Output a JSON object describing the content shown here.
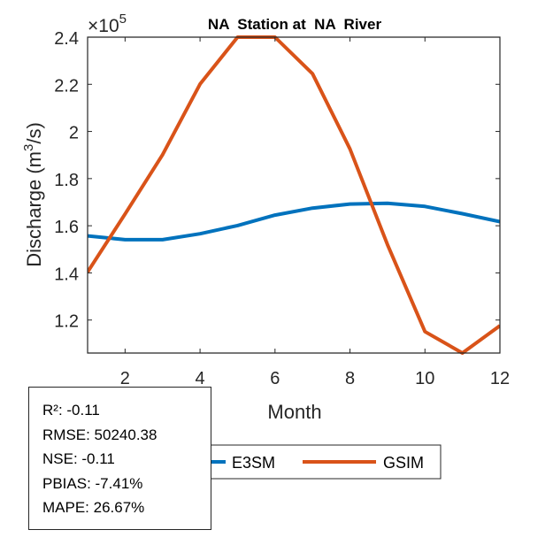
{
  "chart_data": {
    "type": "line",
    "title": "NA  Station at  NA  River",
    "xlabel": "Month",
    "ylabel": "Discharge (m³/s)",
    "ylabel_parts": {
      "before": "Discharge (m",
      "sup": "3",
      "after": "/s)"
    },
    "y_exponent_label": {
      "times": "×",
      "base": "10",
      "exp": "5"
    },
    "x": [
      1,
      2,
      3,
      4,
      5,
      6,
      7,
      8,
      9,
      10,
      11,
      12
    ],
    "xlim": [
      1,
      12
    ],
    "ylim": [
      1.06,
      2.4
    ],
    "y_scale_factor": 100000,
    "xticks": [
      2,
      4,
      6,
      8,
      10,
      12
    ],
    "xtick_labels": [
      "2",
      "4",
      "6",
      "8",
      "10",
      "12"
    ],
    "yticks": [
      1.2,
      1.4,
      1.6,
      1.8,
      2.0,
      2.2,
      2.4
    ],
    "ytick_labels": [
      "1.2",
      "1.4",
      "1.6",
      "1.8",
      "2",
      "2.2",
      "2.4"
    ],
    "grid": false,
    "legend_position": "bottom-outside",
    "series": [
      {
        "name": "E3SM",
        "color": "#0072BD",
        "values": [
          1.557,
          1.541,
          1.541,
          1.566,
          1.601,
          1.645,
          1.675,
          1.692,
          1.695,
          1.682,
          1.651,
          1.617
        ]
      },
      {
        "name": "GSIM",
        "color": "#D95319",
        "values": [
          1.404,
          1.65,
          1.901,
          2.201,
          2.4,
          2.4,
          2.245,
          1.926,
          1.52,
          1.151,
          1.06,
          1.176
        ]
      }
    ]
  },
  "stats": {
    "lines": [
      "R²: -0.11",
      "RMSE: 50240.38",
      "NSE: -0.11",
      "PBIAS: -7.41%",
      "MAPE: 26.67%"
    ]
  }
}
